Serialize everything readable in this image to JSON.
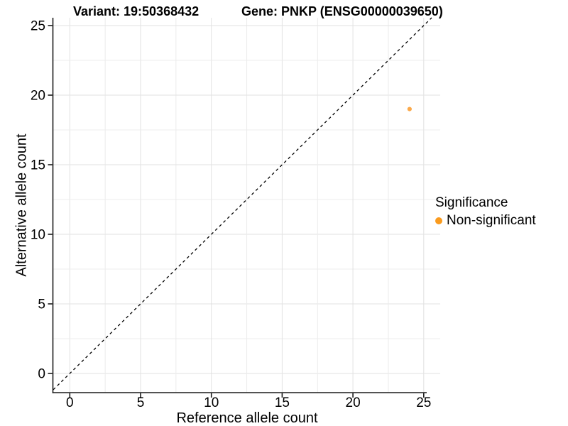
{
  "chart_data": {
    "type": "scatter",
    "title_left": "Variant: 19:50368432",
    "title_right": "Gene: PNKP (ENSG00000039650)",
    "xlabel": "Reference allele count",
    "ylabel": "Alternative allele count",
    "xlim": [
      0,
      25
    ],
    "ylim": [
      0,
      25
    ],
    "x_ticks": [
      0,
      5,
      10,
      15,
      20,
      25
    ],
    "y_ticks": [
      0,
      5,
      10,
      15,
      20,
      25
    ],
    "minor_grid_step": 2.5,
    "grid": true,
    "points": [
      {
        "x": 24,
        "y": 19,
        "series": "Non-significant",
        "color": "#FBA94A"
      }
    ],
    "reference_line": {
      "type": "identity",
      "style": "dashed",
      "color": "#000000"
    },
    "legend": {
      "title": "Significance",
      "position": "right",
      "entries": [
        {
          "label": "Non-significant",
          "color": "#FA9B1E",
          "marker": "circle"
        }
      ]
    },
    "colors": {
      "grid_major": "#E2E2E2",
      "grid_minor": "#ECECEC",
      "axis": "#1A1A1A",
      "text": "#000000",
      "background": "#FFFFFF"
    }
  }
}
